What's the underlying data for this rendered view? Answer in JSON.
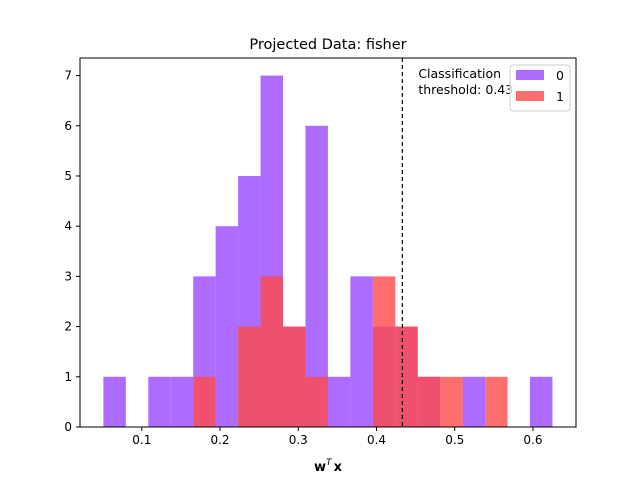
{
  "chart_data": {
    "type": "bar",
    "subtype": "overlapping-histogram",
    "title": "Projected Data: fisher",
    "xlabel": "w",
    "xlabel_superscript": "T",
    "xlabel_suffix": "x",
    "ylabel": "",
    "xlim": [
      0.021,
      0.655
    ],
    "ylim": [
      0,
      7.35
    ],
    "xticks": [
      0.1,
      0.2,
      0.3,
      0.4,
      0.5,
      0.6
    ],
    "xtick_labels": [
      "0.1",
      "0.2",
      "0.3",
      "0.4",
      "0.5",
      "0.6"
    ],
    "yticks": [
      0,
      1,
      2,
      3,
      4,
      5,
      6,
      7
    ],
    "ytick_labels": [
      "0",
      "1",
      "2",
      "3",
      "4",
      "5",
      "6",
      "7"
    ],
    "grid": false,
    "legend_position": "top-right",
    "bin_width": 0.0287,
    "series": [
      {
        "name": "0",
        "color": "#a45bff",
        "bins": [
          {
            "x0": 0.0509,
            "count": 1
          },
          {
            "x0": 0.1083,
            "count": 1
          },
          {
            "x0": 0.137,
            "count": 1
          },
          {
            "x0": 0.1657,
            "count": 3
          },
          {
            "x0": 0.1944,
            "count": 4
          },
          {
            "x0": 0.2231,
            "count": 5
          },
          {
            "x0": 0.2518,
            "count": 7
          },
          {
            "x0": 0.2805,
            "count": 2
          },
          {
            "x0": 0.3092,
            "count": 6
          },
          {
            "x0": 0.3379,
            "count": 1
          },
          {
            "x0": 0.3666,
            "count": 3
          },
          {
            "x0": 0.3953,
            "count": 2
          },
          {
            "x0": 0.424,
            "count": 2
          },
          {
            "x0": 0.4527,
            "count": 1
          },
          {
            "x0": 0.5101,
            "count": 1
          },
          {
            "x0": 0.5962,
            "count": 1
          }
        ]
      },
      {
        "name": "1",
        "color": "#ff4a4a",
        "bins": [
          {
            "x0": 0.1657,
            "count": 1
          },
          {
            "x0": 0.2231,
            "count": 2
          },
          {
            "x0": 0.2518,
            "count": 3
          },
          {
            "x0": 0.2805,
            "count": 2
          },
          {
            "x0": 0.3092,
            "count": 1
          },
          {
            "x0": 0.3953,
            "count": 3
          },
          {
            "x0": 0.424,
            "count": 2
          },
          {
            "x0": 0.4527,
            "count": 1
          },
          {
            "x0": 0.4814,
            "count": 1
          },
          {
            "x0": 0.5388,
            "count": 1
          }
        ]
      }
    ],
    "threshold": {
      "x": 0.433,
      "label_line1": "Classification",
      "label_line2": "threshold: 0.43"
    }
  }
}
